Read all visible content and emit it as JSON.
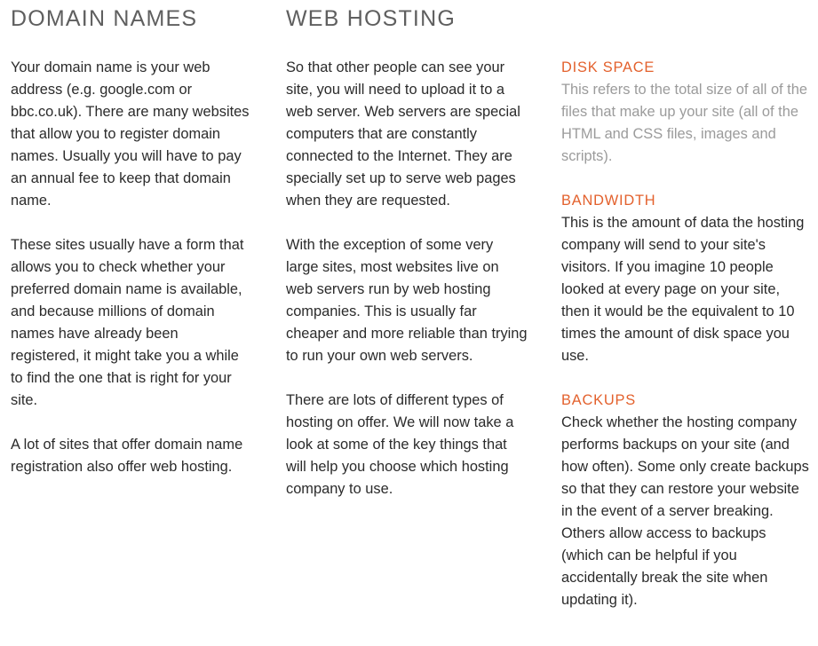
{
  "domain_names": {
    "heading": "DOMAIN NAMES",
    "paragraphs": [
      "Your domain name is your web address (e.g. google.com or bbc.co.uk). There are many websites that allow you to register domain names. Usually you will have to pay an annual fee to keep that domain name.",
      "These sites usually have a form that allows you to check whether your preferred domain name is available, and because millions of domain names have already been registered, it might take you a while to find the one that is right for your site.",
      "A lot of sites that offer domain name registration also offer web hosting."
    ]
  },
  "web_hosting": {
    "heading": "WEB HOSTING",
    "paragraphs": [
      "So that other people can see your site, you will need to upload it to a web server. Web servers are special computers that are constantly connected to the Internet. They are specially set up to serve web pages when they are requested.",
      "With the exception of some very large sites, most websites live on web servers run by web hosting companies. This is usually far cheaper and more reliable than trying to run your own web servers.",
      "There are lots of different types of hosting on offer. We will now take a look at some of the key things that will help you choose which hosting company to use."
    ]
  },
  "hosting_terms": [
    {
      "term": "DISK SPACE",
      "definition": "This refers to the total size of all of the files that make up your site (all of the HTML and CSS files, images and scripts)."
    },
    {
      "term": "BANDWIDTH",
      "definition": "This is the amount of data the hosting company will send to your site's visitors. If you imagine 10 people looked at every page on your site, then it would be the equivalent to 10 times the amount of disk space you use."
    },
    {
      "term": "BACKUPS",
      "definition": "Check whether the hosting company performs backups on your site (and how often). Some only create backups so that they can restore your website in the event of a server breaking. Others allow access to backups (which can be helpful if you accidentally break the site when updating it)."
    }
  ],
  "colors": {
    "heading": "#5f5f5f",
    "term_accent": "#e3612d",
    "body_text": "#2b2b2b",
    "muted_text": "#9b9b9b"
  }
}
